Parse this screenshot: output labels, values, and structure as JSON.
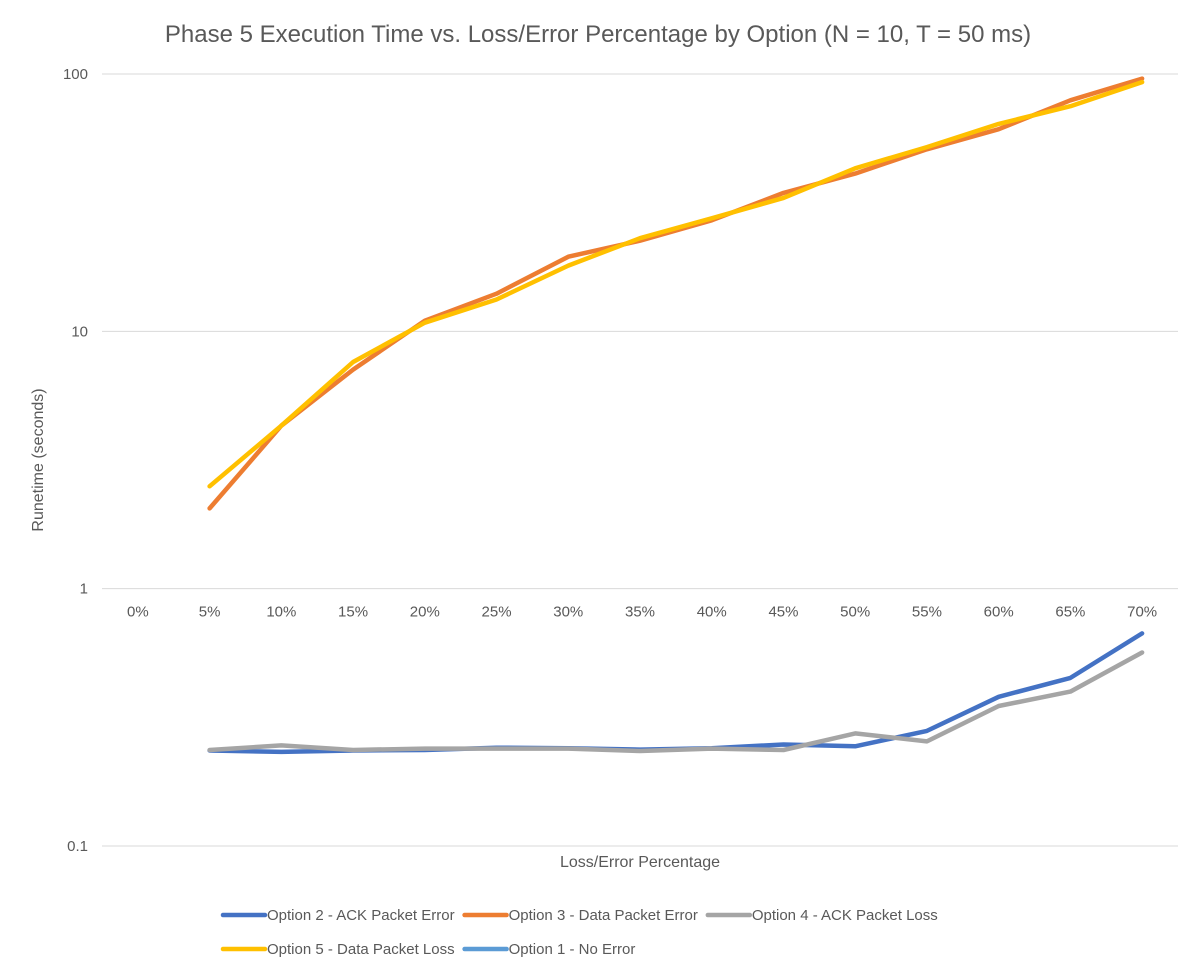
{
  "chart_data": {
    "type": "line",
    "title": "Phase 5 Execution Time vs. Loss/Error Percentage by Option (N = 10, T = 50 ms)",
    "xlabel": "Loss/Error Percentage",
    "ylabel": "Runetime (seconds)",
    "categories": [
      "0%",
      "5%",
      "10%",
      "15%",
      "20%",
      "25%",
      "30%",
      "35%",
      "40%",
      "45%",
      "50%",
      "55%",
      "60%",
      "65%",
      "70%"
    ],
    "y_scale": "log",
    "ylim": [
      0.1,
      100
    ],
    "y_ticks": [
      {
        "value": 100,
        "label": "100"
      },
      {
        "value": 10,
        "label": "10"
      },
      {
        "value": 1,
        "label": "1"
      },
      {
        "value": 0.1,
        "label": "0.1"
      }
    ],
    "x_axis_crosses_at": 1,
    "grid": true,
    "legend_position": "bottom",
    "series": [
      {
        "name": "Option 2 - ACK Packet Error",
        "color": "#4472c4",
        "values": [
          null,
          0.235,
          0.232,
          0.235,
          0.236,
          0.241,
          0.24,
          0.237,
          0.24,
          0.248,
          0.244,
          0.28,
          0.38,
          0.45,
          0.67
        ]
      },
      {
        "name": "Option 3 - Data Packet Error",
        "color": "#ed7d31",
        "values": [
          null,
          2.05,
          4.3,
          7.1,
          11.0,
          14.0,
          19.5,
          22.5,
          27.0,
          34.5,
          41.0,
          51.0,
          61.0,
          79.0,
          96.0
        ]
      },
      {
        "name": "Option 4 - ACK Packet Loss",
        "color": "#a5a5a5",
        "values": [
          null,
          0.236,
          0.246,
          0.236,
          0.239,
          0.239,
          0.239,
          0.234,
          0.239,
          0.236,
          0.274,
          0.255,
          0.35,
          0.398,
          0.565
        ]
      },
      {
        "name": "Option 5 - Data Packet Loss",
        "color": "#ffc000",
        "values": [
          null,
          2.5,
          4.3,
          7.6,
          10.8,
          13.3,
          18.0,
          23.0,
          27.5,
          33.0,
          43.0,
          52.0,
          64.0,
          75.0,
          93.0
        ]
      },
      {
        "name": "Option 1 - No Error",
        "color": "#5b9bd5",
        "values": [
          null,
          null,
          null,
          null,
          null,
          null,
          null,
          null,
          null,
          null,
          null,
          null,
          null,
          null,
          null
        ]
      }
    ]
  }
}
